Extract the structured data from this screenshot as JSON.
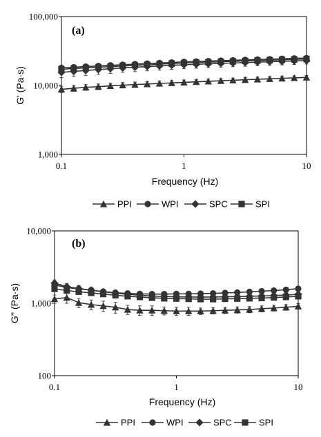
{
  "chart_data": [
    {
      "type": "line",
      "panel_label": "(a)",
      "xlabel": "Frequency (Hz)",
      "ylabel": "G' (Pa·s)",
      "x_scale": "log",
      "y_scale": "log",
      "xlim": [
        0.1,
        10
      ],
      "ylim": [
        1000,
        100000
      ],
      "x_ticks": [
        0.1,
        1,
        10
      ],
      "x_tick_labels": [
        "0.1",
        "1",
        "10"
      ],
      "y_ticks": [
        1000,
        10000,
        100000
      ],
      "y_tick_labels": [
        "1,000",
        "10,000",
        "100,000"
      ],
      "grid": false,
      "legend_position": "bottom",
      "x": [
        0.1,
        0.126,
        0.158,
        0.2,
        0.251,
        0.316,
        0.398,
        0.501,
        0.631,
        0.794,
        1.0,
        1.26,
        1.58,
        2.0,
        2.51,
        3.16,
        3.98,
        5.01,
        6.31,
        7.94,
        10.0
      ],
      "series": [
        {
          "name": "PPI",
          "marker": "triangle",
          "values": [
            8800,
            9100,
            9400,
            9600,
            9900,
            10100,
            10300,
            10500,
            10700,
            10900,
            11100,
            11300,
            11500,
            11700,
            11900,
            12100,
            12300,
            12500,
            12700,
            12900,
            13100
          ],
          "error": [
            900,
            900,
            900,
            900,
            900,
            900,
            900,
            900,
            900,
            900,
            900,
            900,
            900,
            900,
            900,
            900,
            900,
            900,
            900,
            900,
            900
          ]
        },
        {
          "name": "WPI",
          "marker": "circle",
          "values": [
            18000,
            18400,
            18800,
            19200,
            19600,
            20000,
            20400,
            20800,
            21200,
            21600,
            22000,
            22300,
            22600,
            22900,
            23200,
            23500,
            23800,
            24100,
            24400,
            24700,
            25000
          ],
          "error": [
            1500,
            1500,
            1500,
            1500,
            1500,
            1500,
            1500,
            1500,
            1500,
            1500,
            1500,
            1500,
            1500,
            1500,
            1500,
            1500,
            1500,
            1500,
            1500,
            1500,
            1500
          ]
        },
        {
          "name": "SPC",
          "marker": "diamond",
          "values": [
            15500,
            16000,
            16500,
            17000,
            17500,
            18000,
            18400,
            18800,
            19200,
            19600,
            20000,
            20300,
            20600,
            20900,
            21200,
            21500,
            21800,
            22100,
            22400,
            22700,
            23000
          ],
          "error": [
            2500,
            2500,
            2500,
            2500,
            2500,
            2500,
            2500,
            2500,
            2500,
            2500,
            2500,
            2500,
            2500,
            2500,
            2500,
            2500,
            2500,
            2500,
            2500,
            2500,
            2500
          ]
        },
        {
          "name": "SPI",
          "marker": "square",
          "values": [
            17200,
            17600,
            18000,
            18400,
            18800,
            19200,
            19600,
            20000,
            20400,
            20800,
            21200,
            21500,
            21800,
            22100,
            22400,
            22700,
            23000,
            23300,
            23600,
            23900,
            24200
          ],
          "error": [
            1200,
            1200,
            1200,
            1200,
            1200,
            1200,
            1200,
            1200,
            1200,
            1200,
            1200,
            1200,
            1200,
            1200,
            1200,
            1200,
            1200,
            1200,
            1200,
            1200,
            1200
          ]
        }
      ]
    },
    {
      "type": "line",
      "panel_label": "(b)",
      "xlabel": "Frequency (Hz)",
      "ylabel": "G'' (Pa·s)",
      "x_scale": "log",
      "y_scale": "log",
      "xlim": [
        0.1,
        10
      ],
      "ylim": [
        100,
        10000
      ],
      "x_ticks": [
        0.1,
        1,
        10
      ],
      "x_tick_labels": [
        "0.1",
        "1",
        "10"
      ],
      "y_ticks": [
        100,
        1000,
        10000
      ],
      "y_tick_labels": [
        "100",
        "1,000",
        "10,000"
      ],
      "grid": false,
      "legend_position": "bottom",
      "x": [
        0.1,
        0.126,
        0.158,
        0.2,
        0.251,
        0.316,
        0.398,
        0.501,
        0.631,
        0.794,
        1.0,
        1.26,
        1.58,
        2.0,
        2.51,
        3.16,
        3.98,
        5.01,
        6.31,
        7.94,
        10.0
      ],
      "series": [
        {
          "name": "PPI",
          "marker": "triangle",
          "values": [
            1150,
            1200,
            1020,
            960,
            920,
            880,
            820,
            800,
            800,
            790,
            780,
            780,
            780,
            790,
            800,
            810,
            820,
            840,
            860,
            880,
            910
          ],
          "error": [
            150,
            200,
            150,
            150,
            150,
            150,
            120,
            120,
            120,
            100,
            100,
            100,
            80,
            80,
            80,
            80,
            80,
            80,
            80,
            80,
            80
          ]
        },
        {
          "name": "WPI",
          "marker": "circle",
          "values": [
            1800,
            1650,
            1580,
            1520,
            1450,
            1400,
            1370,
            1350,
            1340,
            1340,
            1350,
            1350,
            1360,
            1370,
            1390,
            1410,
            1440,
            1470,
            1500,
            1540,
            1590
          ],
          "error": [
            150,
            150,
            150,
            130,
            120,
            120,
            100,
            100,
            100,
            100,
            100,
            100,
            100,
            100,
            100,
            100,
            100,
            100,
            100,
            100,
            120
          ]
        },
        {
          "name": "SPC",
          "marker": "diamond",
          "values": [
            1900,
            1700,
            1600,
            1520,
            1440,
            1380,
            1330,
            1290,
            1260,
            1240,
            1230,
            1220,
            1220,
            1220,
            1230,
            1240,
            1250,
            1260,
            1280,
            1300,
            1330
          ],
          "error": [
            200,
            180,
            150,
            130,
            120,
            110,
            100,
            100,
            100,
            100,
            100,
            100,
            100,
            100,
            100,
            100,
            100,
            100,
            100,
            100,
            100
          ]
        },
        {
          "name": "SPI",
          "marker": "square",
          "values": [
            1580,
            1500,
            1440,
            1390,
            1340,
            1290,
            1250,
            1220,
            1190,
            1170,
            1160,
            1150,
            1140,
            1140,
            1150,
            1160,
            1170,
            1180,
            1200,
            1220,
            1250
          ],
          "error": [
            120,
            120,
            110,
            100,
            100,
            90,
            90,
            80,
            80,
            80,
            80,
            80,
            80,
            80,
            80,
            80,
            80,
            80,
            80,
            80,
            80
          ]
        }
      ]
    }
  ]
}
